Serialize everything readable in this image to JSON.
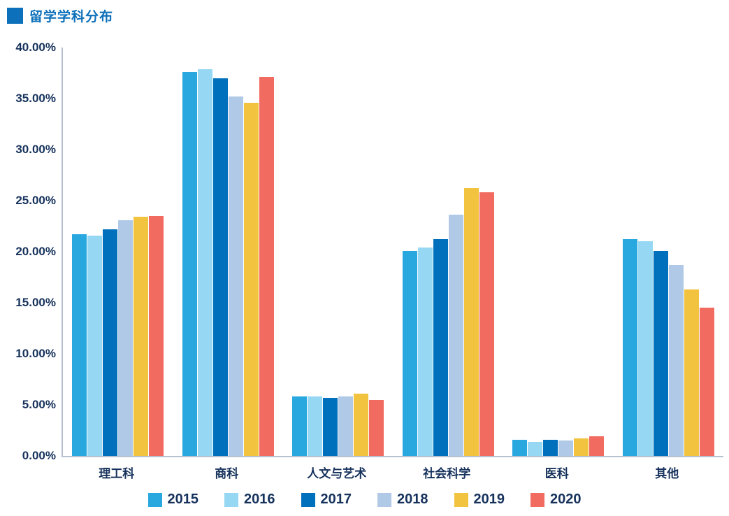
{
  "title": {
    "text": "留学学科分布",
    "accent_color": "#0C70BA"
  },
  "chart_data": {
    "type": "bar",
    "title": "留学学科分布",
    "categories": [
      "理工科",
      "商科",
      "人文与艺术",
      "社会科学",
      "医科",
      "其他"
    ],
    "series": [
      {
        "name": "2015",
        "color": "#29A7DF",
        "values": [
          21.7,
          37.6,
          5.8,
          20.1,
          1.6,
          21.2
        ]
      },
      {
        "name": "2016",
        "color": "#96D8F4",
        "values": [
          21.6,
          37.9,
          5.8,
          20.4,
          1.4,
          21.0
        ]
      },
      {
        "name": "2017",
        "color": "#0070BD",
        "values": [
          22.2,
          37.0,
          5.7,
          21.2,
          1.6,
          20.1
        ]
      },
      {
        "name": "2018",
        "color": "#AFC9E6",
        "values": [
          23.1,
          35.2,
          5.8,
          23.6,
          1.5,
          18.7
        ]
      },
      {
        "name": "2019",
        "color": "#F2C33E",
        "values": [
          23.4,
          34.6,
          6.1,
          26.2,
          1.7,
          16.3
        ]
      },
      {
        "name": "2020",
        "color": "#F16B61",
        "values": [
          23.5,
          37.1,
          5.5,
          25.8,
          1.9,
          14.5
        ]
      }
    ],
    "xlabel": "",
    "ylabel": "",
    "ylim": [
      0,
      40
    ],
    "ytick_step": 5,
    "ytick_labels": [
      "0.00%",
      "5.00%",
      "10.00%",
      "15.00%",
      "20.00%",
      "25.00%",
      "30.00%",
      "35.00%",
      "40.00%"
    ],
    "grid": false,
    "legend_position": "bottom",
    "axis_color": "#B5C1CF",
    "text_color": "#16325C"
  }
}
